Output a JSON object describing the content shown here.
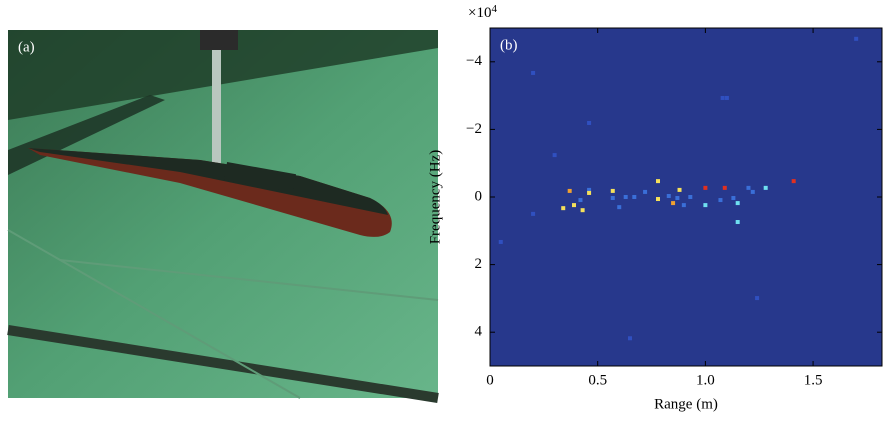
{
  "photo_label": "(a)",
  "chart_data": {
    "type": "scatter",
    "panel_label": "(b)",
    "x_label": "Range (m)",
    "y_label": "Frequency (Hz)",
    "y_multiplier_base": "×10",
    "y_multiplier_power": "4",
    "background": "#27388c",
    "xlim": [
      0,
      1.82
    ],
    "ylim": [
      5,
      -5
    ],
    "xticks": [
      0,
      0.5,
      {
        "value": 1,
        "label": "1.0"
      },
      1.5
    ],
    "yticks": [
      {
        "value": -4,
        "label": "−4"
      },
      {
        "value": -2,
        "label": "−2"
      },
      0,
      2,
      4
    ],
    "x": [
      0.37,
      0.34,
      0.39,
      0.42,
      0.43,
      0.46,
      0.46,
      0.57,
      0.57,
      0.6,
      0.63,
      0.67,
      0.72,
      0.78,
      0.78,
      0.83,
      0.85,
      0.87,
      0.88,
      0.9,
      0.93,
      1.0,
      1.0,
      1.07,
      1.09,
      1.13,
      1.15,
      1.15,
      1.2,
      1.22,
      1.28,
      1.41,
      0.05,
      0.2,
      0.3,
      0.46,
      1.08,
      1.1,
      1.7,
      0.2,
      1.24,
      0.65
    ],
    "values": [
      -0.18,
      0.33,
      0.24,
      0.09,
      0.39,
      -0.21,
      -0.12,
      -0.18,
      0.03,
      0.3,
      0,
      0,
      -0.15,
      -0.47,
      0.06,
      -0.03,
      0.18,
      0.03,
      -0.21,
      0.24,
      0,
      0.24,
      -0.27,
      0.09,
      -0.27,
      0.03,
      0.18,
      0.74,
      -0.27,
      -0.15,
      -0.27,
      -0.47,
      1.33,
      0.5,
      -1.24,
      -2.19,
      -2.93,
      -2.93,
      -4.68,
      -3.67,
      2.99,
      4.18
    ],
    "colors": [
      "#f0a030",
      "#f5e05a",
      "#f5e05a",
      "#3a6fd8",
      "#f5e05a",
      "#3a6fd8",
      "#f5e05a",
      "#f5e05a",
      "#3a6fd8",
      "#3a6fd8",
      "#3a6fd8",
      "#3a6fd8",
      "#3a6fd8",
      "#f5e05a",
      "#f5e05a",
      "#3a6fd8",
      "#f0a030",
      "#3a6fd8",
      "#f5e05a",
      "#3a6fd8",
      "#3a6fd8",
      "#6fe0f0",
      "#e03020",
      "#3a6fd8",
      "#e03020",
      "#3a6fd8",
      "#6fe0f0",
      "#6fe0f0",
      "#3a6fd8",
      "#3a6fd8",
      "#6fe0f0",
      "#e03020",
      "#3050c0",
      "#3050c0",
      "#3050c0",
      "#3050c0",
      "#3050c0",
      "#3050c0",
      "#3050c0",
      "#3050c0",
      "#3050c0",
      "#3050c0"
    ]
  }
}
